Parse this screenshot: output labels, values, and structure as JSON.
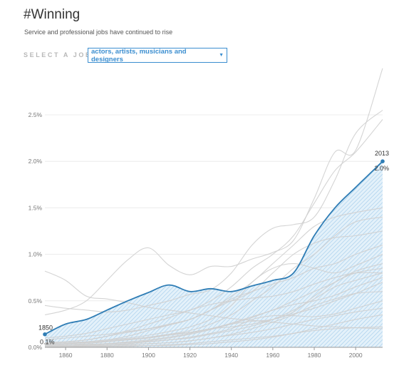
{
  "header": {
    "title": "#Winning",
    "subtitle": "Service and professional jobs have continued to rise"
  },
  "selector": {
    "label": "SELECT A JOB:",
    "value": "actors, artists, musicians and designers",
    "caret": "▼"
  },
  "colors": {
    "highlight": "#2f7db5",
    "fill": "#a8d0ec",
    "background_lines": "#cfcfcf",
    "grid": "#ececec"
  },
  "chart_data": {
    "type": "line",
    "title": "#Winning",
    "xlabel": "",
    "ylabel": "",
    "xlim": [
      1850,
      2013
    ],
    "ylim": [
      0,
      0.025
    ],
    "x_ticks": [
      "1860",
      "1880",
      "1900",
      "1920",
      "1940",
      "1960",
      "1980",
      "2000"
    ],
    "y_ticks": [
      "0.0%",
      "0.5%",
      "1.0%",
      "1.5%",
      "2.0%",
      "2.5%"
    ],
    "grid": true,
    "annotations": {
      "start_year": "1850",
      "start_value": "0.1%",
      "end_year": "2013",
      "end_value": "2.0%"
    },
    "highlighted_series": {
      "x": [
        1850,
        1860,
        1870,
        1880,
        1890,
        1900,
        1910,
        1920,
        1930,
        1940,
        1950,
        1960,
        1970,
        1980,
        1990,
        2000,
        2013
      ],
      "values": [
        0.0014,
        0.0025,
        0.003,
        0.004,
        0.005,
        0.0059,
        0.0067,
        0.006,
        0.0063,
        0.006,
        0.0066,
        0.0072,
        0.008,
        0.012,
        0.015,
        0.0172,
        0.02
      ]
    },
    "background_series": [
      {
        "values": [
          0.0082,
          0.0072,
          0.0055,
          0.0052,
          0.0048,
          0.0043,
          0.004,
          0.0037,
          0.0034,
          0.0031,
          0.0029,
          0.0027,
          0.0025,
          0.0023,
          0.0022,
          0.0021,
          0.002
        ]
      },
      {
        "values": [
          0.0035,
          0.004,
          0.005,
          0.0072,
          0.0094,
          0.0107,
          0.0088,
          0.0078,
          0.0087,
          0.0087,
          0.0095,
          0.0102,
          0.0115,
          0.016,
          0.021,
          0.0212,
          0.03
        ]
      },
      {
        "values": [
          0.0045,
          0.0042,
          0.004,
          0.0038,
          0.004,
          0.0045,
          0.005,
          0.0057,
          0.0062,
          0.008,
          0.011,
          0.0128,
          0.0132,
          0.014,
          0.018,
          0.023,
          0.0255
        ]
      },
      {
        "values": [
          0.001,
          0.0012,
          0.0015,
          0.002,
          0.0025,
          0.003,
          0.0035,
          0.004,
          0.005,
          0.0065,
          0.0085,
          0.01,
          0.012,
          0.0155,
          0.019,
          0.021,
          0.0245
        ]
      },
      {
        "values": [
          0.0005,
          0.0006,
          0.0008,
          0.0012,
          0.0016,
          0.002,
          0.0025,
          0.003,
          0.004,
          0.0055,
          0.007,
          0.009,
          0.011,
          0.013,
          0.014,
          0.0145,
          0.015
        ]
      },
      {
        "values": [
          0.0002,
          0.0003,
          0.0004,
          0.0006,
          0.0008,
          0.001,
          0.0014,
          0.0018,
          0.0025,
          0.0035,
          0.005,
          0.0065,
          0.0085,
          0.01,
          0.012,
          0.0135,
          0.014
        ]
      },
      {
        "values": [
          0.0008,
          0.001,
          0.0012,
          0.0014,
          0.0017,
          0.002,
          0.0024,
          0.003,
          0.004,
          0.005,
          0.006,
          0.008,
          0.01,
          0.0112,
          0.0118,
          0.012,
          0.0125
        ]
      },
      {
        "values": [
          0.0003,
          0.0004,
          0.0006,
          0.0008,
          0.0012,
          0.0018,
          0.0024,
          0.003,
          0.004,
          0.0052,
          0.006,
          0.0068,
          0.0075,
          0.0085,
          0.009,
          0.01,
          0.011
        ]
      },
      {
        "values": [
          0.0004,
          0.0005,
          0.0006,
          0.0008,
          0.001,
          0.0013,
          0.0017,
          0.0022,
          0.003,
          0.0045,
          0.007,
          0.0085,
          0.009,
          0.0085,
          0.008,
          0.0088,
          0.01
        ]
      },
      {
        "values": [
          0.0002,
          0.0002,
          0.0003,
          0.0004,
          0.0006,
          0.0008,
          0.0011,
          0.0015,
          0.002,
          0.0026,
          0.0033,
          0.004,
          0.005,
          0.006,
          0.007,
          0.0082,
          0.009
        ]
      },
      {
        "values": [
          0.0004,
          0.0004,
          0.0005,
          0.0006,
          0.0008,
          0.001,
          0.0013,
          0.0016,
          0.002,
          0.0025,
          0.0028,
          0.003,
          0.0038,
          0.0055,
          0.007,
          0.008,
          0.0085
        ]
      },
      {
        "values": [
          0.0001,
          0.0001,
          0.0002,
          0.0003,
          0.0004,
          0.0006,
          0.0008,
          0.001,
          0.0014,
          0.0018,
          0.0023,
          0.003,
          0.004,
          0.0052,
          0.0065,
          0.0072,
          0.008
        ]
      },
      {
        "values": [
          0.0002,
          0.0002,
          0.0003,
          0.0004,
          0.0005,
          0.0007,
          0.001,
          0.0014,
          0.0019,
          0.0025,
          0.0032,
          0.004,
          0.0046,
          0.005,
          0.0056,
          0.0065,
          0.0075
        ]
      },
      {
        "values": [
          0.0003,
          0.0004,
          0.0005,
          0.0007,
          0.0009,
          0.0011,
          0.0014,
          0.0016,
          0.002,
          0.0022,
          0.0025,
          0.003,
          0.0036,
          0.0042,
          0.005,
          0.0058,
          0.007
        ]
      },
      {
        "values": [
          0.0001,
          0.0001,
          0.0001,
          0.0002,
          0.0003,
          0.0004,
          0.0005,
          0.0007,
          0.001,
          0.0014,
          0.002,
          0.0027,
          0.0035,
          0.0045,
          0.0052,
          0.0058,
          0.006
        ]
      },
      {
        "values": [
          0.0005,
          0.0006,
          0.0008,
          0.0012,
          0.0018,
          0.0025,
          0.0032,
          0.004,
          0.0046,
          0.005,
          0.0053,
          0.0055,
          0.006,
          0.0068,
          0.0075,
          0.008,
          0.008
        ]
      },
      {
        "values": [
          0.0002,
          0.0002,
          0.0003,
          0.0004,
          0.0005,
          0.0006,
          0.0008,
          0.0011,
          0.0015,
          0.002,
          0.003,
          0.0034,
          0.0034,
          0.0033,
          0.0036,
          0.0042,
          0.005
        ]
      },
      {
        "values": [
          0.0001,
          0.0001,
          0.0002,
          0.0002,
          0.0003,
          0.0004,
          0.0005,
          0.0007,
          0.001,
          0.0013,
          0.0016,
          0.002,
          0.0025,
          0.003,
          0.0034,
          0.0038,
          0.0042
        ]
      },
      {
        "values": [
          0.0,
          0.0001,
          0.0001,
          0.0001,
          0.0002,
          0.0002,
          0.0003,
          0.0004,
          0.0006,
          0.0008,
          0.001,
          0.0012,
          0.0015,
          0.002,
          0.0025,
          0.003,
          0.0035
        ]
      },
      {
        "values": [
          0.0,
          0.0,
          0.0001,
          0.0001,
          0.0001,
          0.0002,
          0.0002,
          0.0003,
          0.0004,
          0.0006,
          0.0008,
          0.0011,
          0.0015,
          0.0018,
          0.002,
          0.0021,
          0.0022
        ]
      }
    ]
  }
}
